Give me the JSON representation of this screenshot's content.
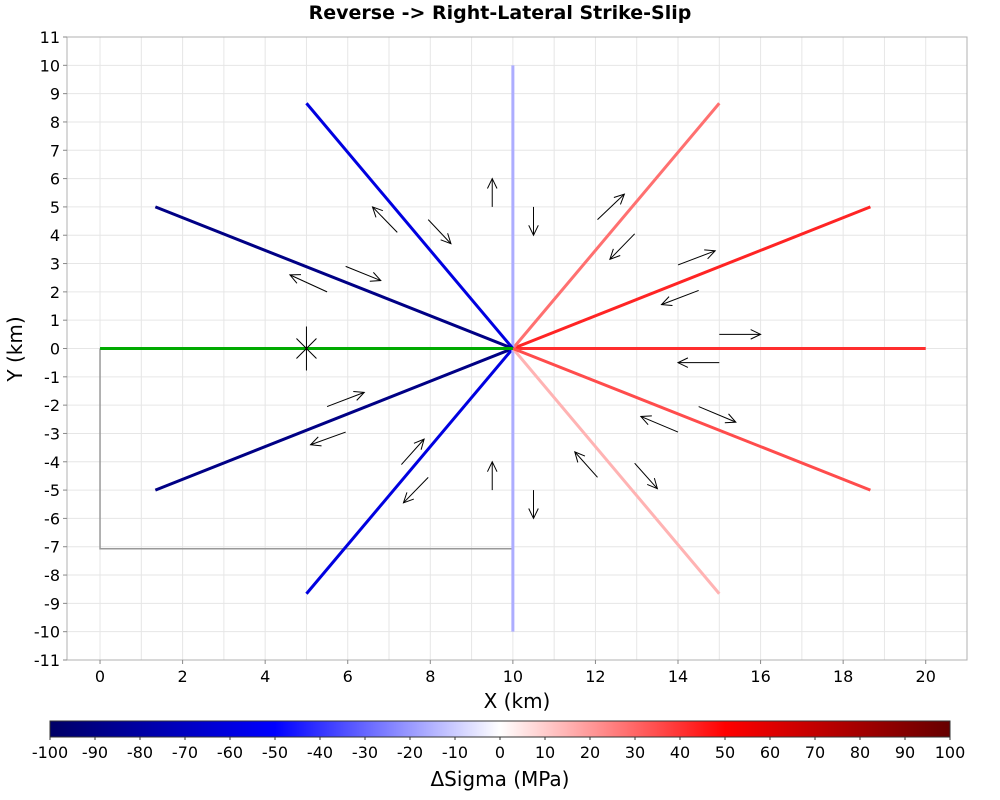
{
  "chart_data": {
    "type": "line",
    "title": "Reverse -> Right-Lateral Strike-Slip",
    "xlabel": "X (km)",
    "ylabel": "Y (km)",
    "xlim": [
      -0.8,
      21
    ],
    "ylim": [
      -11,
      11
    ],
    "x_ticks": [
      "0",
      "2",
      "4",
      "6",
      "8",
      "10",
      "12",
      "14",
      "16",
      "18",
      "20"
    ],
    "y_ticks": [
      "-11",
      "-10",
      "-9",
      "-8",
      "-7",
      "-6",
      "-5",
      "-4",
      "-3",
      "-2",
      "-1",
      "0",
      "1",
      "2",
      "3",
      "4",
      "5",
      "6",
      "7",
      "8",
      "9",
      "10",
      "11"
    ],
    "grid": true,
    "colors": {
      "source_fault": "#00aa00",
      "frame": "#999999",
      "arrows": "#000000",
      "grid": "#e6e6e6"
    },
    "source_fault": {
      "x": [
        0,
        10
      ],
      "y": [
        0,
        0
      ]
    },
    "hypocenter": {
      "x": 5,
      "y": 0
    },
    "surface_outline": {
      "x": [
        0,
        0,
        10,
        10
      ],
      "y": [
        0,
        -7.07,
        -7.07,
        0
      ]
    },
    "series": [
      {
        "x": [
          10,
          20
        ],
        "y": [
          0,
          0
        ],
        "dsigma": 41
      },
      {
        "x": [
          10,
          18.66
        ],
        "y": [
          0,
          5
        ],
        "dsigma": 43
      },
      {
        "x": [
          10,
          15
        ],
        "y": [
          0,
          8.66
        ],
        "dsigma": 28
      },
      {
        "x": [
          10,
          10
        ],
        "y": [
          0,
          10
        ],
        "dsigma": -16
      },
      {
        "x": [
          10,
          5
        ],
        "y": [
          0,
          8.66
        ],
        "dsigma": -60
      },
      {
        "x": [
          10,
          1.34
        ],
        "y": [
          0,
          5
        ],
        "dsigma": -90
      },
      {
        "x": [
          10,
          1.34
        ],
        "y": [
          0,
          -5
        ],
        "dsigma": -90
      },
      {
        "x": [
          10,
          5
        ],
        "y": [
          0,
          -8.66
        ],
        "dsigma": -60
      },
      {
        "x": [
          10,
          10
        ],
        "y": [
          0,
          -10
        ],
        "dsigma": -16
      },
      {
        "x": [
          10,
          15
        ],
        "y": [
          0,
          -8.66
        ],
        "dsigma": 15
      },
      {
        "x": [
          10,
          18.66
        ],
        "y": [
          0,
          -5
        ],
        "dsigma": 35
      }
    ],
    "arrows": [
      {
        "x1": 15.0,
        "y1": 0.5,
        "x2": 16.0,
        "y2": 0.5
      },
      {
        "x1": 15.0,
        "y1": -0.5,
        "x2": 14.0,
        "y2": -0.5
      },
      {
        "x1": 14.0,
        "y1": 2.95,
        "x2": 14.9,
        "y2": 3.45
      },
      {
        "x1": 14.5,
        "y1": 2.05,
        "x2": 13.6,
        "y2": 1.55
      },
      {
        "x1": 12.05,
        "y1": 4.55,
        "x2": 12.7,
        "y2": 5.45
      },
      {
        "x1": 12.95,
        "y1": 4.05,
        "x2": 12.35,
        "y2": 3.15
      },
      {
        "x1": 9.5,
        "y1": 5.0,
        "x2": 9.5,
        "y2": 6.0
      },
      {
        "x1": 10.5,
        "y1": 5.0,
        "x2": 10.5,
        "y2": 4.0
      },
      {
        "x1": 7.2,
        "y1": 4.1,
        "x2": 6.6,
        "y2": 5.0
      },
      {
        "x1": 7.95,
        "y1": 4.55,
        "x2": 8.5,
        "y2": 3.7
      },
      {
        "x1": 5.5,
        "y1": 2.0,
        "x2": 4.6,
        "y2": 2.6
      },
      {
        "x1": 5.95,
        "y1": 2.9,
        "x2": 6.8,
        "y2": 2.4
      },
      {
        "x1": 5.5,
        "y1": -2.05,
        "x2": 6.4,
        "y2": -1.55
      },
      {
        "x1": 5.95,
        "y1": -2.95,
        "x2": 5.1,
        "y2": -3.4
      },
      {
        "x1": 7.3,
        "y1": -4.1,
        "x2": 7.85,
        "y2": -3.2
      },
      {
        "x1": 7.95,
        "y1": -4.55,
        "x2": 7.35,
        "y2": -5.45
      },
      {
        "x1": 9.5,
        "y1": -5.0,
        "x2": 9.5,
        "y2": -4.0
      },
      {
        "x1": 10.5,
        "y1": -5.0,
        "x2": 10.5,
        "y2": -6.0
      },
      {
        "x1": 12.05,
        "y1": -4.55,
        "x2": 11.5,
        "y2": -3.65
      },
      {
        "x1": 12.95,
        "y1": -4.05,
        "x2": 13.5,
        "y2": -4.95
      },
      {
        "x1": 14.5,
        "y1": -2.05,
        "x2": 15.4,
        "y2": -2.6
      },
      {
        "x1": 14.0,
        "y1": -2.95,
        "x2": 13.1,
        "y2": -2.4
      }
    ],
    "colorbar": {
      "label": "ΔSigma (MPa)",
      "range": [
        -100,
        100
      ],
      "ticks": [
        "-100",
        "-90",
        "-80",
        "-70",
        "-60",
        "-50",
        "-40",
        "-30",
        "-20",
        "-10",
        "0",
        "10",
        "20",
        "30",
        "40",
        "50",
        "60",
        "70",
        "80",
        "90",
        "100"
      ],
      "stops": [
        "#000066",
        "#0000ff",
        "#ffffff",
        "#ff0000",
        "#660000"
      ]
    }
  }
}
